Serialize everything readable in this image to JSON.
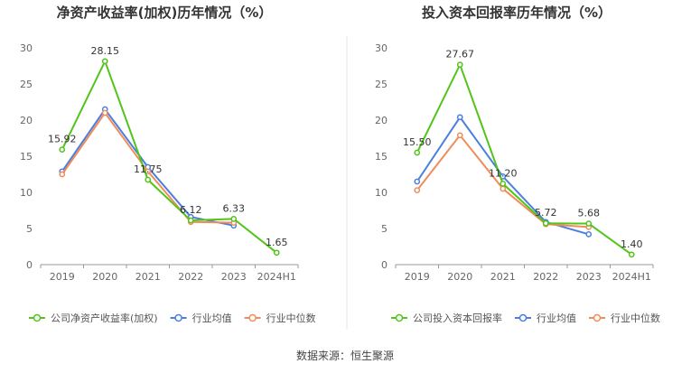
{
  "chart_data": [
    {
      "type": "line",
      "title": "净资产收益率(加权)历年情况（%）",
      "categories": [
        "2019",
        "2020",
        "2021",
        "2022",
        "2023",
        "2024H1"
      ],
      "ylim": [
        0,
        30
      ],
      "yticks": [
        "0",
        "5",
        "10",
        "15",
        "20",
        "25",
        "30"
      ],
      "grid": false,
      "legend_position": "bottom-left",
      "series": [
        {
          "name": "公司净资产收益率(加权)",
          "color": "#52c41a",
          "values": [
            15.92,
            28.15,
            11.75,
            6.12,
            6.33,
            1.65
          ],
          "labels": [
            "15.92",
            "28.15",
            "11.75",
            "6.12",
            "6.33",
            "1.65"
          ]
        },
        {
          "name": "行业均值",
          "color": "#4a7fe0",
          "values": [
            12.9,
            21.5,
            13.5,
            6.6,
            5.4,
            null
          ]
        },
        {
          "name": "行业中位数",
          "color": "#f08c5a",
          "values": [
            12.5,
            21.0,
            12.9,
            5.9,
            5.8,
            null
          ]
        }
      ]
    },
    {
      "type": "line",
      "title": "投入资本回报率历年情况（%）",
      "categories": [
        "2019",
        "2020",
        "2021",
        "2022",
        "2023",
        "2024H1"
      ],
      "ylim": [
        0,
        30
      ],
      "yticks": [
        "0",
        "5",
        "10",
        "15",
        "20",
        "25",
        "30"
      ],
      "grid": false,
      "legend_position": "bottom-left",
      "series": [
        {
          "name": "公司投入资本回报率",
          "color": "#52c41a",
          "values": [
            15.5,
            27.67,
            11.2,
            5.72,
            5.68,
            1.4
          ],
          "labels": [
            "15.50",
            "27.67",
            "11.20",
            "5.72",
            "5.68",
            "1.40"
          ]
        },
        {
          "name": "行业均值",
          "color": "#4a7fe0",
          "values": [
            11.5,
            20.4,
            12.2,
            5.9,
            4.2,
            null
          ]
        },
        {
          "name": "行业中位数",
          "color": "#f08c5a",
          "values": [
            10.3,
            17.9,
            10.5,
            5.6,
            5.2,
            null
          ]
        }
      ]
    }
  ],
  "footer": {
    "source": "数据来源：恒生聚源"
  }
}
